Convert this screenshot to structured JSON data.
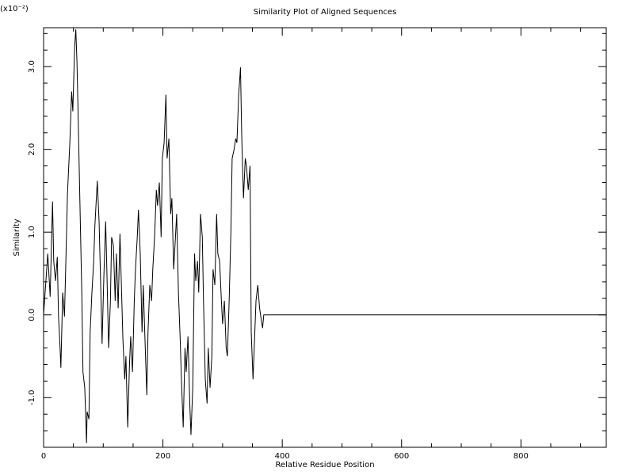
{
  "chart_data": {
    "type": "line",
    "title": "Similarity Plot of Aligned Sequences",
    "x_label": "Relative Residue Position",
    "y_label": "Similarity",
    "y_multiplier": "(x10⁻²)",
    "color": "#000000",
    "xlim": [
      0,
      943
    ],
    "ylim": [
      -1.6,
      3.47
    ],
    "xticks": [
      0,
      200,
      400,
      600,
      800
    ],
    "yticks": [
      {
        "value": -1,
        "label": "-1.0"
      },
      {
        "value": 0,
        "label": "0.0"
      },
      {
        "value": 1,
        "label": "1.0"
      },
      {
        "value": 2,
        "label": "2.0"
      },
      {
        "value": 3,
        "label": "3.0"
      }
    ],
    "x_minor_ticks": [
      50,
      100,
      150,
      250,
      300,
      350,
      450,
      500,
      550,
      650,
      700,
      750,
      850,
      900
    ],
    "y_minor_ticks": [
      -1.4,
      -1.2,
      -0.8,
      -0.6,
      -0.4,
      -0.2,
      0.2,
      0.4,
      0.6,
      0.8,
      1.2,
      1.4,
      1.6,
      1.8,
      2.2,
      2.4,
      2.6,
      2.8,
      3.2,
      3.4
    ],
    "x": [
      0,
      7,
      11,
      15,
      17,
      20,
      23,
      25,
      27,
      29,
      32,
      35,
      37,
      40,
      44,
      47,
      49,
      52,
      54,
      56,
      58,
      61,
      64,
      66,
      69,
      72,
      73,
      76,
      78,
      81,
      84,
      86,
      90,
      93,
      96,
      98,
      101,
      104,
      106,
      109,
      112,
      114,
      117,
      120,
      122,
      125,
      128,
      130,
      133,
      136,
      138,
      141,
      144,
      146,
      149,
      152,
      154,
      157,
      159,
      162,
      165,
      167,
      170,
      173,
      175,
      178,
      181,
      183,
      186,
      189,
      191,
      194,
      197,
      199,
      202,
      205,
      207,
      210,
      213,
      215,
      218,
      221,
      223,
      226,
      229,
      231,
      234,
      237,
      239,
      242,
      245,
      247,
      250,
      253,
      255,
      258,
      260,
      263,
      266,
      268,
      271,
      274,
      276,
      279,
      282,
      284,
      287,
      290,
      292,
      295,
      298,
      300,
      303,
      306,
      308,
      311,
      314,
      316,
      319,
      322,
      324,
      327,
      330,
      332,
      335,
      338,
      340,
      343,
      346,
      348,
      351,
      354,
      356,
      359,
      362,
      364,
      367,
      369,
      943
    ],
    "values": [
      0,
      0.74,
      0.22,
      1.37,
      0.65,
      0.41,
      0.7,
      -0.02,
      -0.3,
      -0.64,
      0.27,
      -0.02,
      0.55,
      1.46,
      2.08,
      2.7,
      2.46,
      3.23,
      3.45,
      3.04,
      2.37,
      1.32,
      0.27,
      -0.69,
      -0.88,
      -1.55,
      -1.17,
      -1.26,
      -0.21,
      0.27,
      0.65,
      1.08,
      1.62,
      1.13,
      0.27,
      -0.35,
      0.46,
      1.13,
      0.55,
      -0.4,
      0.17,
      0.94,
      0.84,
      0.17,
      0.74,
      0.08,
      0.98,
      0.46,
      -0.31,
      -0.78,
      -0.5,
      -1.36,
      -0.59,
      -0.26,
      -0.69,
      0.17,
      0.55,
      0.94,
      1.27,
      0.74,
      -0.21,
      0.36,
      -0.31,
      -0.97,
      -0.21,
      0.36,
      0.17,
      0.55,
      0.94,
      1.51,
      1.32,
      1.6,
      0.94,
      1.89,
      2.08,
      2.66,
      1.89,
      2.13,
      1.22,
      1.41,
      0.55,
      0.94,
      1.22,
      0.27,
      -0.31,
      -0.78,
      -1.36,
      -0.4,
      -0.69,
      -0.26,
      -1.07,
      -1.45,
      -0.88,
      0.74,
      0.41,
      0.65,
      0.27,
      1.22,
      0.94,
      0.17,
      -0.78,
      -1.07,
      -0.4,
      -0.88,
      -0.5,
      0.55,
      0.36,
      1.22,
      0.74,
      0.65,
      0.17,
      -0.11,
      0.17,
      -0.4,
      -0.5,
      0.17,
      1.03,
      1.89,
      1.99,
      2.13,
      2.08,
      2.66,
      2.99,
      2.18,
      1.41,
      1.89,
      1.8,
      1.51,
      1.8,
      -0.21,
      -0.78,
      -0.21,
      0.17,
      0.36,
      0.08,
      -0.02,
      -0.16,
      0,
      0
    ]
  }
}
